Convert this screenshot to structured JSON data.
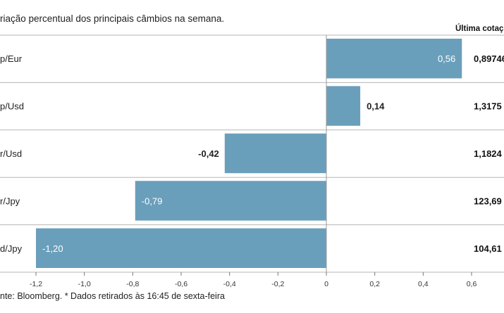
{
  "chart_data": {
    "type": "bar",
    "orientation": "horizontal",
    "subtitle": "riação percentual dos principais câmbios na semana.",
    "last_quote_header": "Última cotaç",
    "categories": [
      "p/Eur",
      "p/Usd",
      "r/Usd",
      "r/Jpy",
      "d/Jpy"
    ],
    "values": [
      0.56,
      0.14,
      -0.42,
      -0.79,
      -1.2
    ],
    "value_labels": [
      "0,56",
      "0,14",
      "-0,42",
      "-0,79",
      "-1,20"
    ],
    "last_quotes": [
      "0,89746",
      "1,3175",
      "1,1824",
      "123,69",
      "104,61"
    ],
    "x_ticks": [
      -1.2,
      -1.0,
      -0.8,
      -0.6,
      -0.4,
      -0.2,
      0,
      0.2,
      0.4,
      0.6
    ],
    "x_tick_labels": [
      "-1,2",
      "-1,0",
      "-0,8",
      "-0,6",
      "-0,4",
      "-0,2",
      "0",
      "0,2",
      "0,4",
      "0,6"
    ],
    "xlim": [
      -1.2,
      0.6
    ],
    "source": "nte: Bloomberg.  * Dados retirados às 16:45 de sexta-feira",
    "bar_color": "#6a9fbb",
    "grid": false
  }
}
